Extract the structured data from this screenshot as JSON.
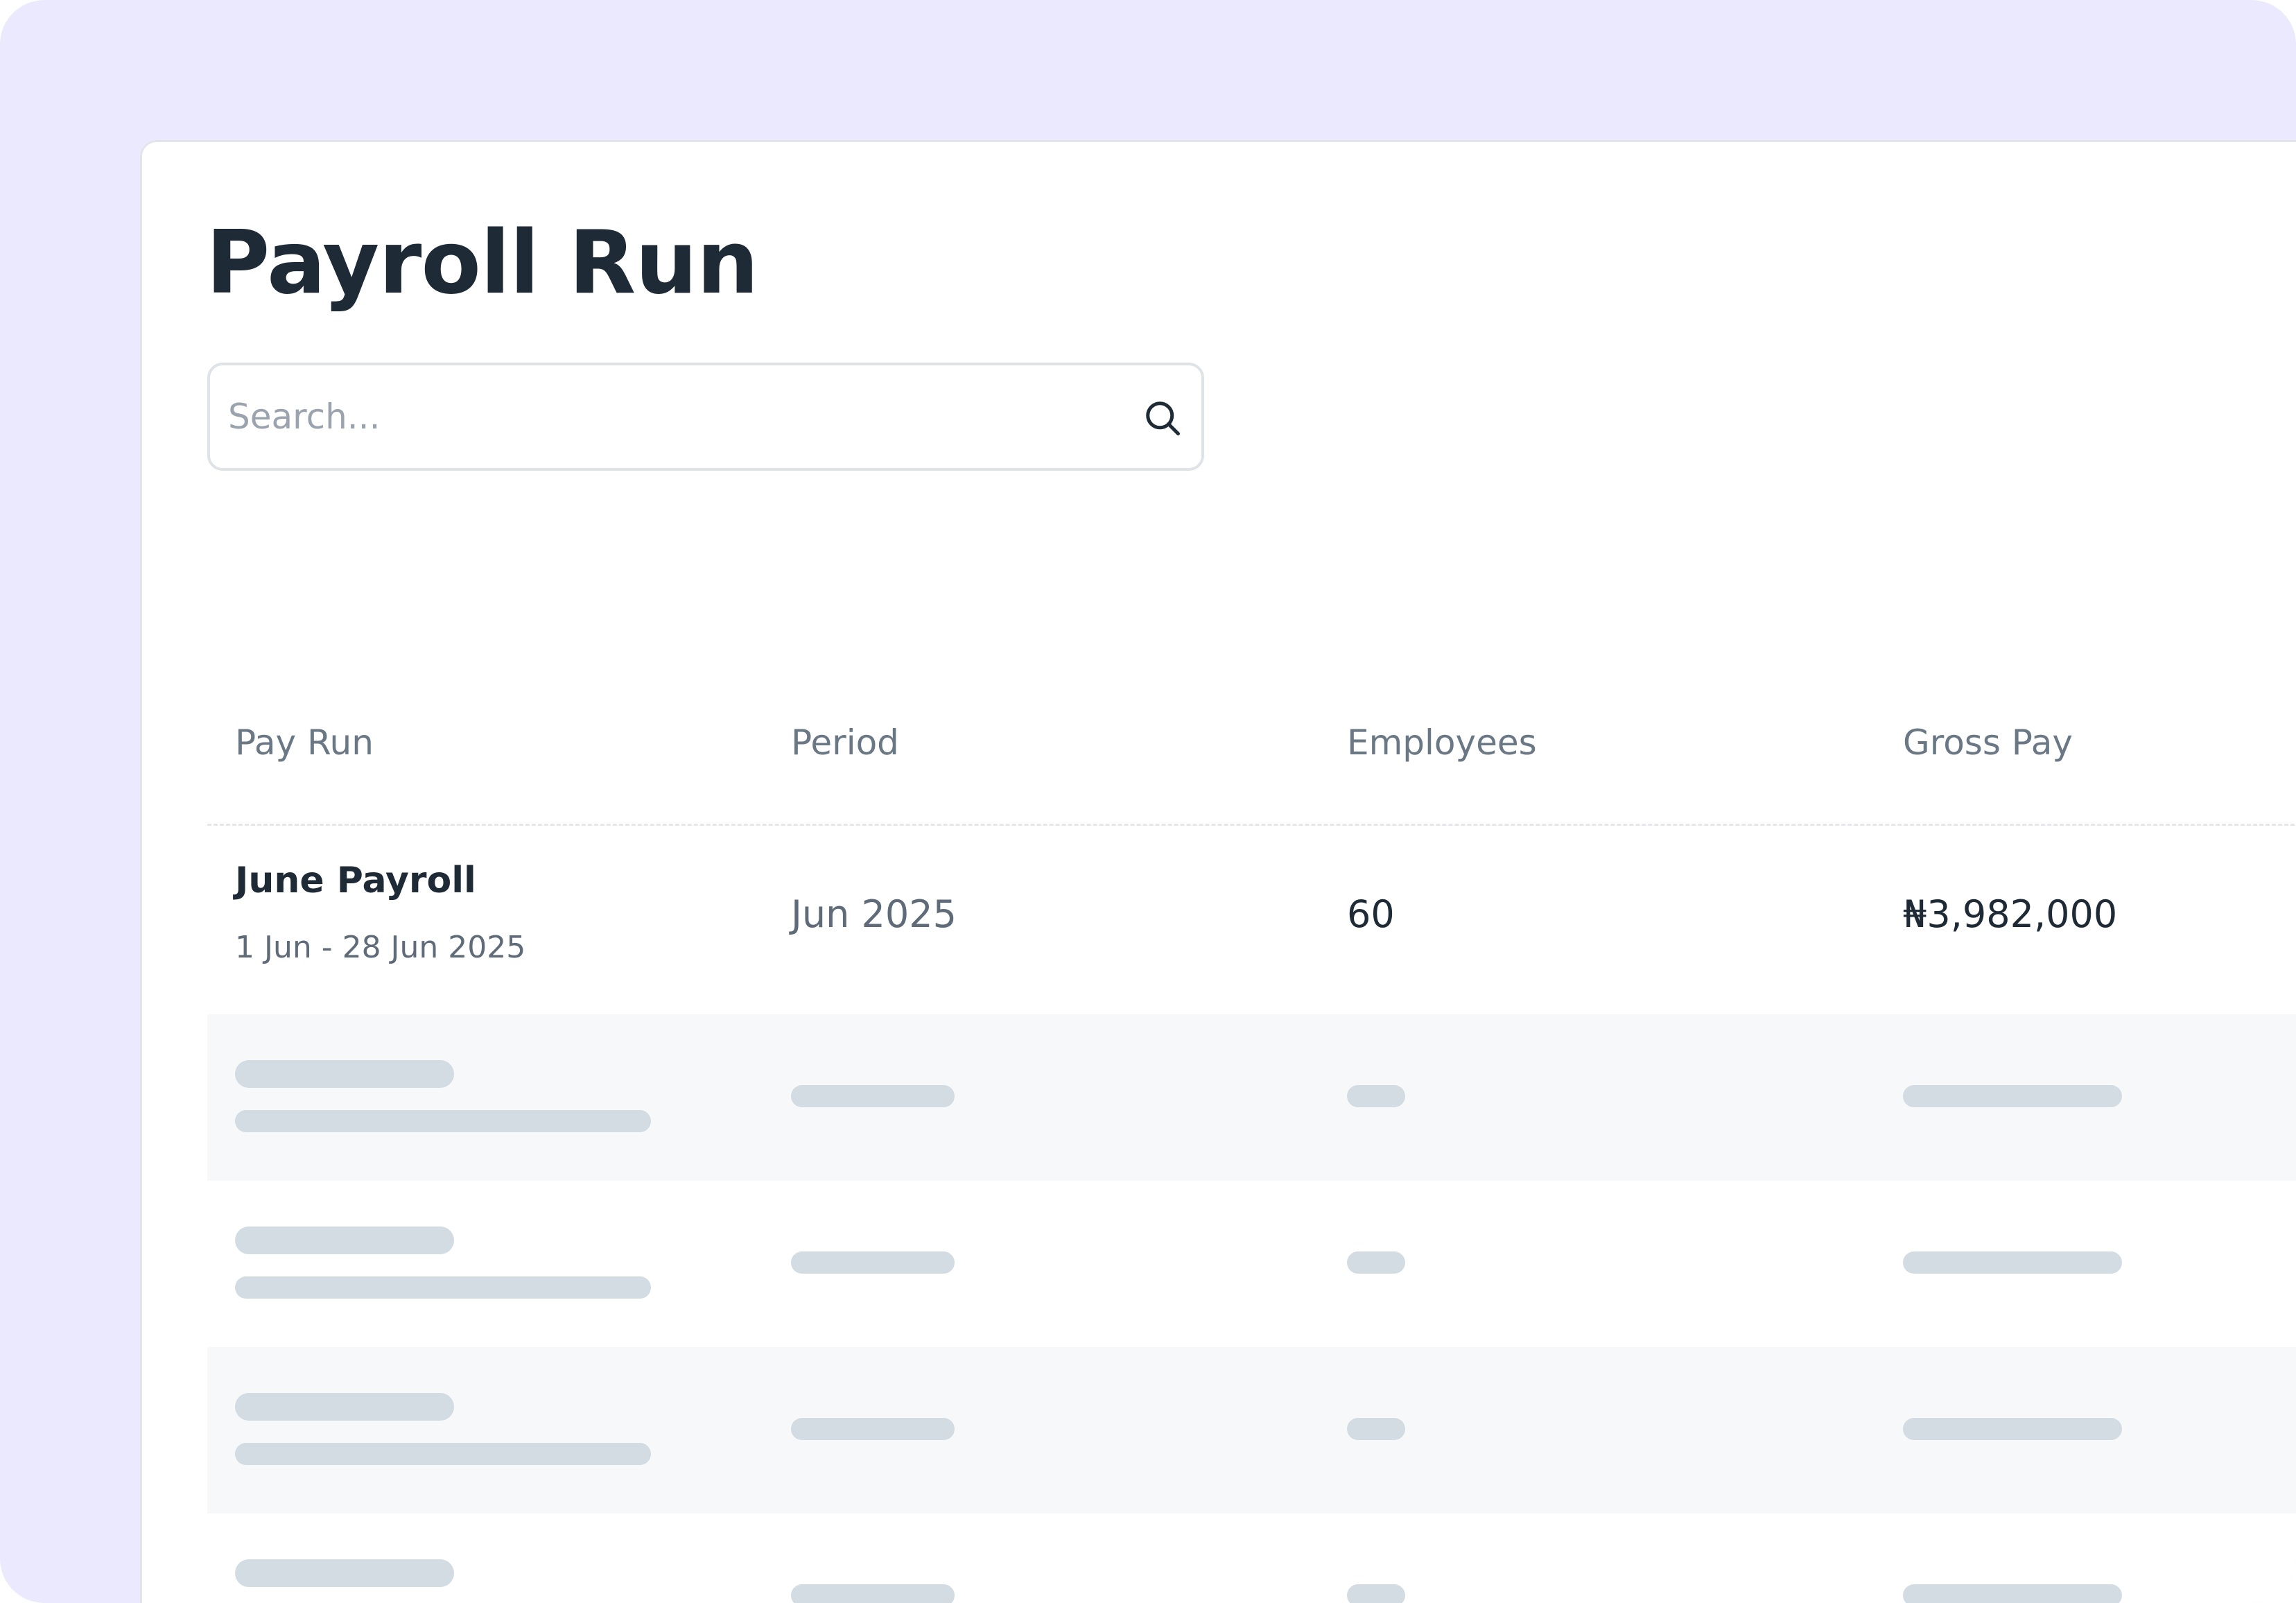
{
  "page": {
    "title": "Payroll Run"
  },
  "search": {
    "placeholder": "Search...",
    "value": "",
    "icon": "search-icon"
  },
  "table": {
    "columns": [
      "Pay Run",
      "Period",
      "Employees",
      "Gross Pay"
    ],
    "rows": [
      {
        "name": "June Payroll",
        "dates": "1 Jun - 28 Jun 2025",
        "period": "Jun 2025",
        "employees": "60",
        "gross_pay": "₦3,982,000"
      }
    ],
    "loading_rows": 4
  },
  "colors": {
    "frame_background": "#ebe9fe",
    "card_background": "#ffffff",
    "title_text": "#1e2a36",
    "muted_text": "#6a7784",
    "skeleton": "#d3dbe3",
    "alt_row": "#f7f8fa"
  }
}
